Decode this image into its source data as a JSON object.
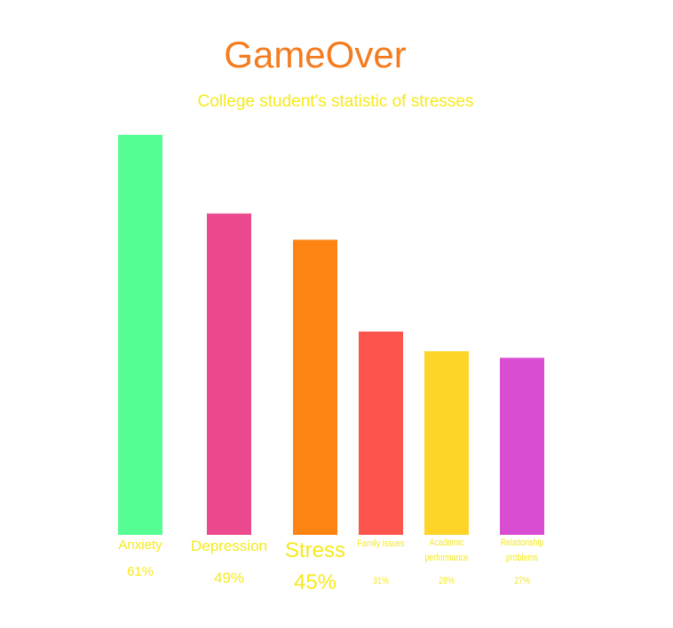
{
  "chart_data": {
    "type": "bar",
    "title": "GameOver",
    "subtitle": "College student's statistic of stresses",
    "categories": [
      "Anxiety",
      "Depression",
      "Stress",
      "Family issues",
      "Academic performance",
      "Relationship problems"
    ],
    "category_lines": [
      [
        "Anxiety"
      ],
      [
        "Depression"
      ],
      [
        "Stress"
      ],
      [
        "Family issues"
      ],
      [
        "Academic",
        "performance"
      ],
      [
        "Relationship",
        "problems"
      ]
    ],
    "values": [
      61,
      49,
      45,
      31,
      28,
      27
    ],
    "value_labels": [
      "61%",
      "49%",
      "45%",
      "31%",
      "28%",
      "27%"
    ],
    "bar_colors": [
      "#56fd92",
      "#ec4a8e",
      "#fd8412",
      "#fd554e",
      "#fed428",
      "#d84dd2"
    ],
    "label_color": "#f5ea1c",
    "xlabel": "",
    "ylabel": "",
    "grid": false
  }
}
